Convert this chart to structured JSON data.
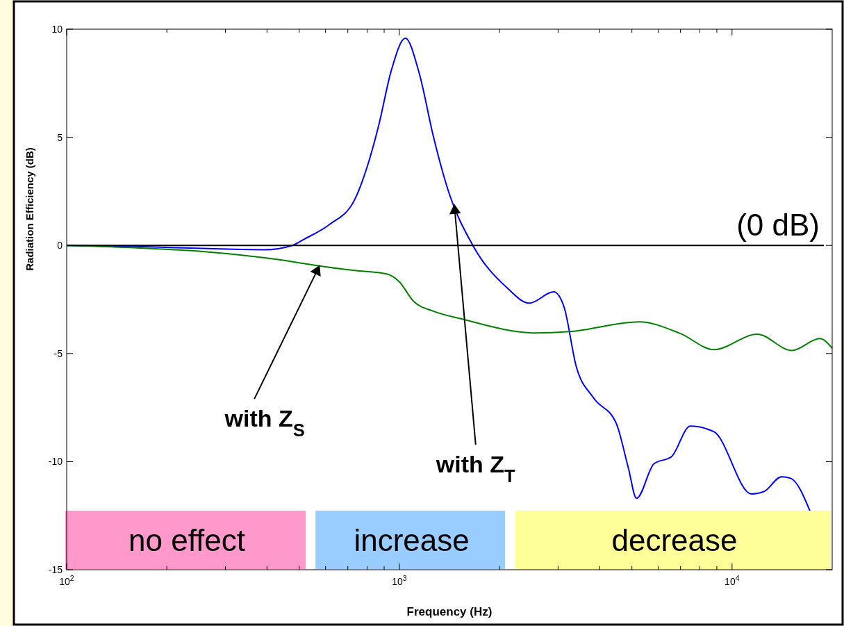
{
  "chart_data": {
    "type": "line",
    "xlabel": "Frequency (Hz)",
    "ylabel": "Radiation Efficiency (dB)",
    "log": "x",
    "grid": false,
    "marker": "none",
    "line_style": "solid",
    "xlim": [
      100,
      20000
    ],
    "ylim": [
      -15,
      10
    ],
    "xticks": [
      {
        "value": 100,
        "label": "10$^{2}$"
      },
      {
        "value": 200,
        "label": null
      },
      {
        "value": 300,
        "label": null
      },
      {
        "value": 400,
        "label": null
      },
      {
        "value": 500,
        "label": null
      },
      {
        "value": 600,
        "label": null
      },
      {
        "value": 700,
        "label": null
      },
      {
        "value": 800,
        "label": null
      },
      {
        "value": 900,
        "label": null
      },
      {
        "value": 1000,
        "label": "10$^{3}$"
      },
      {
        "value": 2000,
        "label": null
      },
      {
        "value": 3000,
        "label": null
      },
      {
        "value": 4000,
        "label": null
      },
      {
        "value": 5000,
        "label": null
      },
      {
        "value": 6000,
        "label": null
      },
      {
        "value": 7000,
        "label": null
      },
      {
        "value": 8000,
        "label": null
      },
      {
        "value": 9000,
        "label": null
      },
      {
        "value": 10000,
        "label": "10$^{4}$"
      }
    ],
    "yticks": [
      -15,
      -10,
      -5,
      0,
      5,
      10
    ],
    "series": [
      {
        "color": "#0000ff",
        "x": [
          100,
          165,
          267,
          393,
          477,
          518,
          616,
          733,
          795,
          867,
          946,
          1042,
          1147,
          1267,
          1398,
          1663,
          2097,
          2458,
          2910,
          3128,
          3396,
          3829,
          4487,
          4873,
          5164,
          5825,
          6577,
          7486,
          8822,
          11446,
          12484,
          14083,
          14996,
          17246
        ],
        "values": [
          0,
          -0.05,
          -0.15,
          -0.2,
          0,
          0.29,
          0.96,
          2.1,
          3.5,
          5.56,
          8.1,
          9.58,
          7.97,
          5.0,
          2.6,
          0,
          -1.93,
          -2.67,
          -2.15,
          -2.86,
          -5.56,
          -7.04,
          -8.23,
          -10.26,
          -11.7,
          -10.1,
          -9.77,
          -8.36,
          -8.62,
          -11.5,
          -11.38,
          -10.7,
          -10.77,
          -12.38
        ]
      },
      {
        "color": "#008000",
        "x": [
          100,
          155,
          260,
          435,
          565,
          733,
          915,
          998,
          1104,
          1270,
          1547,
          2555,
          3251,
          5267,
          6998,
          8822,
          11896,
          15136,
          18362,
          20000
        ],
        "values": [
          0,
          -0.1,
          -0.29,
          -0.66,
          -0.93,
          -1.16,
          -1.32,
          -1.67,
          -2.59,
          -3.05,
          -3.41,
          -4.05,
          -3.99,
          -3.54,
          -4.08,
          -4.82,
          -4.11,
          -4.86,
          -4.31,
          -4.76
        ]
      }
    ],
    "ref_lines": [
      {
        "axis": "y",
        "value": 0,
        "label": "(0 dB)",
        "color": "#000000"
      }
    ],
    "bands": [
      {
        "axis": "x",
        "from": 100,
        "to": 528,
        "label": "no effect",
        "color": "#ff99cc"
      },
      {
        "axis": "x",
        "from": 565,
        "to": 2097,
        "label": "increase",
        "color": "#99ccff"
      },
      {
        "axis": "x",
        "from": 2254,
        "to": 20000,
        "label": "decrease",
        "color": "#ffff99"
      }
    ],
    "annotations": [
      {
        "text": "with Z$_{S}$",
        "x": 565,
        "y": -0.93
      },
      {
        "text": "with Z$_{T}$",
        "x": 1468,
        "y": 1.87
      }
    ]
  }
}
